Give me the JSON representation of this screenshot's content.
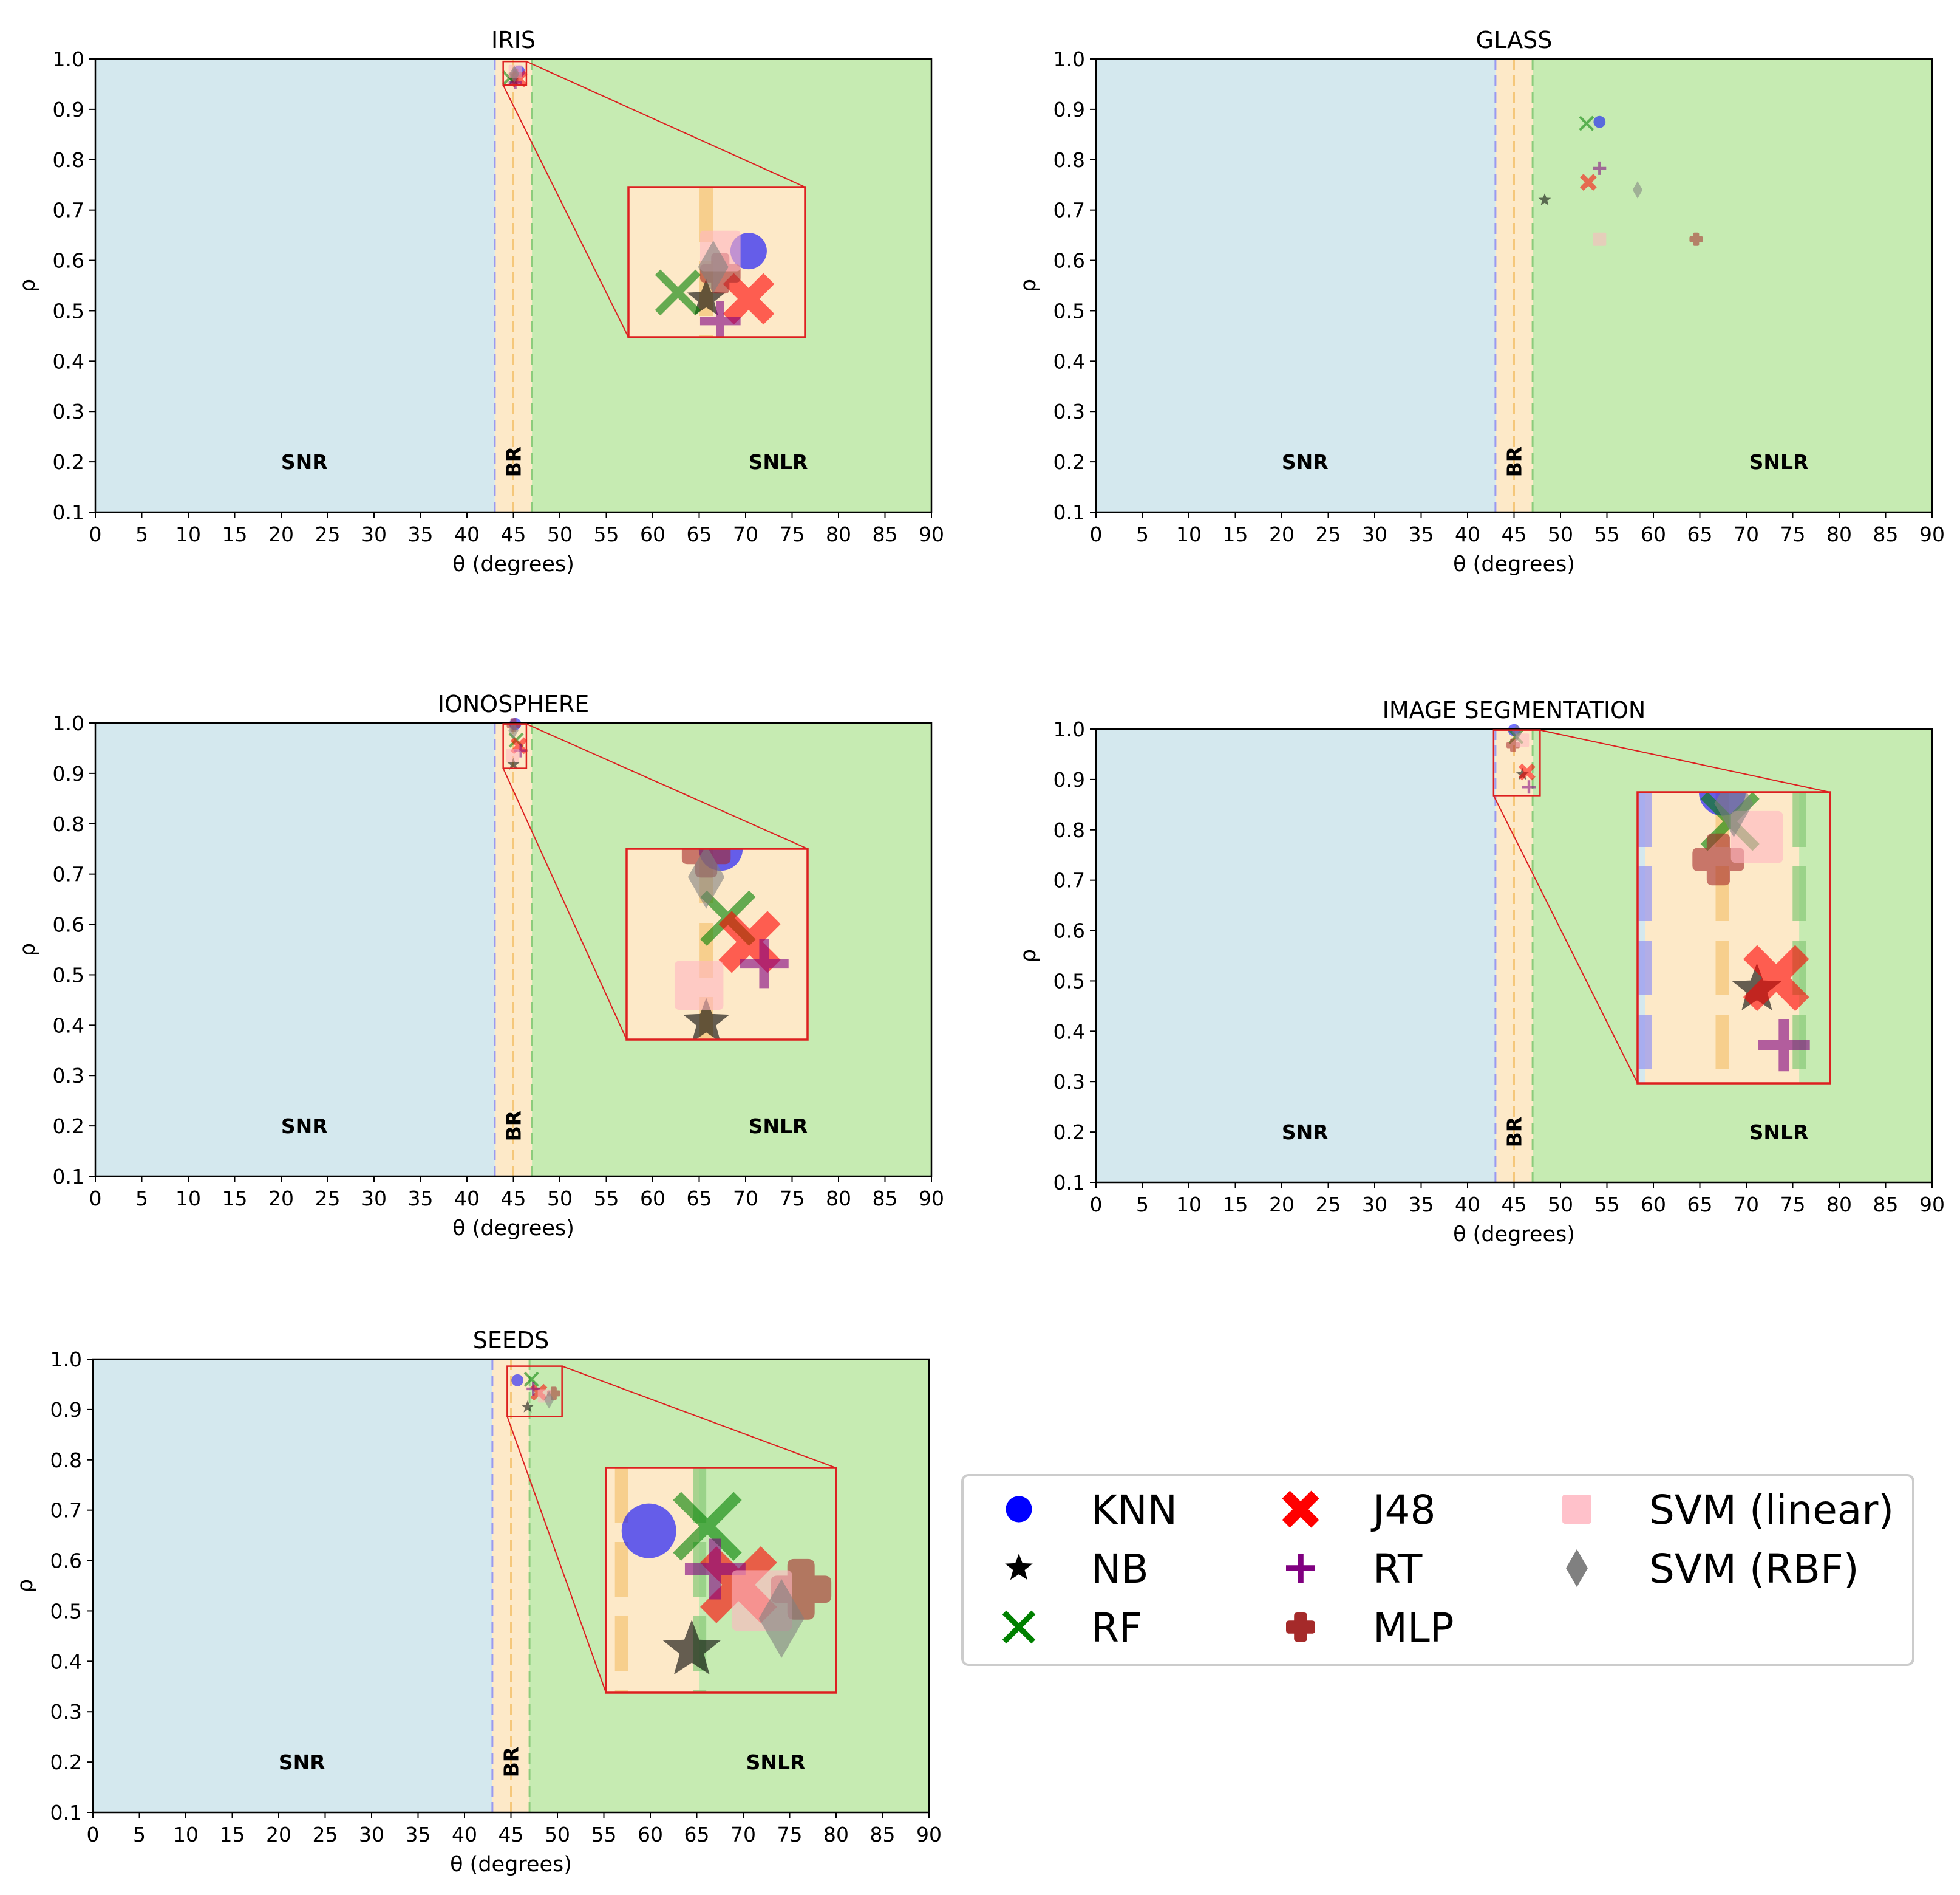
{
  "figure": {
    "x_tick_labels": [
      "0",
      "5",
      "10",
      "15",
      "20",
      "25",
      "30",
      "35",
      "40",
      "45",
      "50",
      "55",
      "60",
      "65",
      "70",
      "75",
      "80",
      "85",
      "90"
    ],
    "y_tick_labels": [
      "0.1",
      "0.2",
      "0.3",
      "0.4",
      "0.5",
      "0.6",
      "0.7",
      "0.8",
      "0.9",
      "1.0"
    ]
  },
  "chart_data": [
    {
      "type": "scatter",
      "title": "IRIS",
      "xlabel": "θ (degrees)",
      "ylabel": "ρ",
      "xlim": [
        0,
        90
      ],
      "ylim": [
        0.1,
        1.0
      ],
      "regions": [
        {
          "label": "SNR",
          "x_start": 0,
          "x_end": 43,
          "color": "#d4e8ee"
        },
        {
          "label": "BR",
          "x_start": 43,
          "x_end": 47,
          "color": "#fde9c8"
        },
        {
          "label": "SNLR",
          "x_start": 47,
          "x_end": 90,
          "color": "#c6ebb2"
        }
      ],
      "inset": {
        "x_range": [
          43.9,
          46.4
        ],
        "y_range": [
          0.948,
          0.995
        ]
      },
      "series": [
        {
          "name": "KNN",
          "x": 45.6,
          "y": 0.975
        },
        {
          "name": "NB",
          "x": 45.0,
          "y": 0.96
        },
        {
          "name": "RF",
          "x": 44.6,
          "y": 0.962
        },
        {
          "name": "J48",
          "x": 45.6,
          "y": 0.96
        },
        {
          "name": "RT",
          "x": 45.2,
          "y": 0.953
        },
        {
          "name": "MLP",
          "x": 45.2,
          "y": 0.968
        },
        {
          "name": "SVM (linear)",
          "x": 45.2,
          "y": 0.975
        },
        {
          "name": "SVM (RBF)",
          "x": 45.1,
          "y": 0.97
        }
      ]
    },
    {
      "type": "scatter",
      "title": "GLASS",
      "xlabel": "θ (degrees)",
      "ylabel": "ρ",
      "xlim": [
        0,
        90
      ],
      "ylim": [
        0.1,
        1.0
      ],
      "regions": [
        {
          "label": "SNR",
          "x_start": 0,
          "x_end": 43,
          "color": "#d4e8ee"
        },
        {
          "label": "BR",
          "x_start": 43,
          "x_end": 47,
          "color": "#fde9c8"
        },
        {
          "label": "SNLR",
          "x_start": 47,
          "x_end": 90,
          "color": "#c6ebb2"
        }
      ],
      "series": [
        {
          "name": "KNN",
          "x": 54.2,
          "y": 0.875
        },
        {
          "name": "NB",
          "x": 48.3,
          "y": 0.72
        },
        {
          "name": "RF",
          "x": 52.8,
          "y": 0.872
        },
        {
          "name": "J48",
          "x": 53.0,
          "y": 0.755
        },
        {
          "name": "RT",
          "x": 54.2,
          "y": 0.783
        },
        {
          "name": "MLP",
          "x": 64.6,
          "y": 0.642
        },
        {
          "name": "SVM (linear)",
          "x": 54.2,
          "y": 0.642
        },
        {
          "name": "SVM (RBF)",
          "x": 58.3,
          "y": 0.74
        }
      ]
    },
    {
      "type": "scatter",
      "title": "IONOSPHERE",
      "xlabel": "θ (degrees)",
      "ylabel": "ρ",
      "xlim": [
        0,
        90
      ],
      "ylim": [
        0.1,
        1.0
      ],
      "regions": [
        {
          "label": "SNR",
          "x_start": 0,
          "x_end": 43,
          "color": "#d4e8ee"
        },
        {
          "label": "BR",
          "x_start": 43,
          "x_end": 47,
          "color": "#fde9c8"
        },
        {
          "label": "SNLR",
          "x_start": 47,
          "x_end": 90,
          "color": "#c6ebb2"
        }
      ],
      "inset": {
        "x_range": [
          43.9,
          46.4
        ],
        "y_range": [
          0.91,
          0.998
        ]
      },
      "series": [
        {
          "name": "KNN",
          "x": 45.2,
          "y": 0.998
        },
        {
          "name": "NB",
          "x": 45.0,
          "y": 0.918
        },
        {
          "name": "RF",
          "x": 45.3,
          "y": 0.966
        },
        {
          "name": "J48",
          "x": 45.6,
          "y": 0.955
        },
        {
          "name": "RT",
          "x": 45.8,
          "y": 0.945
        },
        {
          "name": "MLP",
          "x": 45.0,
          "y": 0.996
        },
        {
          "name": "SVM (linear)",
          "x": 44.9,
          "y": 0.935
        },
        {
          "name": "SVM (RBF)",
          "x": 45.0,
          "y": 0.985
        }
      ]
    },
    {
      "type": "scatter",
      "title": "IMAGE SEGMENTATION",
      "xlabel": "θ (degrees)",
      "ylabel": "ρ",
      "xlim": [
        0,
        90
      ],
      "ylim": [
        0.1,
        1.0
      ],
      "regions": [
        {
          "label": "SNR",
          "x_start": 0,
          "x_end": 43,
          "color": "#d4e8ee"
        },
        {
          "label": "BR",
          "x_start": 43,
          "x_end": 47,
          "color": "#fde9c8"
        },
        {
          "label": "SNLR",
          "x_start": 47,
          "x_end": 90,
          "color": "#c6ebb2"
        }
      ],
      "inset": {
        "x_range": [
          42.8,
          47.8
        ],
        "y_range": [
          0.868,
          0.998
        ]
      },
      "series": [
        {
          "name": "KNN",
          "x": 45.0,
          "y": 0.998
        },
        {
          "name": "NB",
          "x": 45.9,
          "y": 0.91
        },
        {
          "name": "RF",
          "x": 45.2,
          "y": 0.985
        },
        {
          "name": "J48",
          "x": 46.4,
          "y": 0.915
        },
        {
          "name": "RT",
          "x": 46.6,
          "y": 0.885
        },
        {
          "name": "MLP",
          "x": 44.9,
          "y": 0.968
        },
        {
          "name": "SVM (linear)",
          "x": 45.9,
          "y": 0.978
        },
        {
          "name": "SVM (RBF)",
          "x": 45.3,
          "y": 0.993
        }
      ]
    },
    {
      "type": "scatter",
      "title": "SEEDS",
      "xlabel": "θ (degrees)",
      "ylabel": "ρ",
      "xlim": [
        0,
        90
      ],
      "ylim": [
        0.1,
        1.0
      ],
      "regions": [
        {
          "label": "SNR",
          "x_start": 0,
          "x_end": 43,
          "color": "#d4e8ee"
        },
        {
          "label": "BR",
          "x_start": 43,
          "x_end": 47,
          "color": "#fde9c8"
        },
        {
          "label": "SNLR",
          "x_start": 47,
          "x_end": 90,
          "color": "#c6ebb2"
        }
      ],
      "inset": {
        "x_range": [
          44.6,
          50.5
        ],
        "y_range": [
          0.886,
          0.986
        ]
      },
      "series": [
        {
          "name": "KNN",
          "x": 45.7,
          "y": 0.958
        },
        {
          "name": "NB",
          "x": 46.8,
          "y": 0.905
        },
        {
          "name": "RF",
          "x": 47.2,
          "y": 0.96
        },
        {
          "name": "J48",
          "x": 48.0,
          "y": 0.934
        },
        {
          "name": "RT",
          "x": 47.4,
          "y": 0.941
        },
        {
          "name": "MLP",
          "x": 49.6,
          "y": 0.932
        },
        {
          "name": "SVM (linear)",
          "x": 48.6,
          "y": 0.927
        },
        {
          "name": "SVM (RBF)",
          "x": 49.1,
          "y": 0.919
        }
      ]
    }
  ],
  "legend": {
    "placement": "lower-right",
    "items": [
      {
        "name": "KNN",
        "marker": "circle",
        "color": "#0000ff"
      },
      {
        "name": "NB",
        "marker": "star",
        "color": "#000000"
      },
      {
        "name": "RF",
        "marker": "x",
        "color": "#008000"
      },
      {
        "name": "J48",
        "marker": "xfill",
        "color": "#ff0000"
      },
      {
        "name": "RT",
        "marker": "plus",
        "color": "#800080"
      },
      {
        "name": "MLP",
        "marker": "pfill",
        "color": "#a52a2a"
      },
      {
        "name": "SVM (linear)",
        "marker": "square",
        "color": "#ffb6c1"
      },
      {
        "name": "SVM (RBF)",
        "marker": "diamond",
        "color": "#808080"
      }
    ]
  },
  "colors": {
    "snr": "#d4e8ee",
    "br": "#fde9c8",
    "snlr": "#c6ebb2",
    "snr_line": "#9a9af0",
    "br_line": "#f5c77a",
    "snlr_line": "#8ccc7c",
    "inset_border": "#dd2020"
  }
}
